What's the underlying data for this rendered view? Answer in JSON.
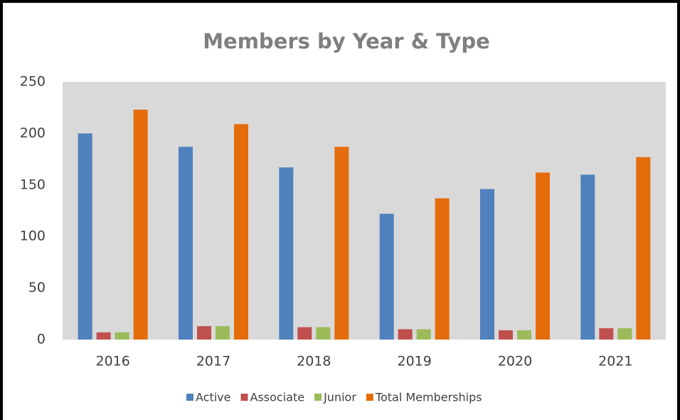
{
  "chart_data": {
    "type": "bar",
    "title": "Members by Year & Type",
    "categories": [
      "2016",
      "2017",
      "2018",
      "2019",
      "2020",
      "2021"
    ],
    "series": [
      {
        "name": "Active",
        "color": "#4f81bd",
        "values": [
          200,
          187,
          167,
          122,
          146,
          160
        ]
      },
      {
        "name": "Associate",
        "color": "#c0504d",
        "values": [
          7,
          13,
          12,
          10,
          9,
          11
        ]
      },
      {
        "name": "Junior",
        "color": "#9bbb59",
        "values": [
          7,
          13,
          12,
          10,
          9,
          11
        ]
      },
      {
        "name": "Total Memberships",
        "color": "#e46c0a",
        "values": [
          223,
          209,
          187,
          137,
          162,
          177
        ]
      }
    ],
    "ylim": [
      0,
      250
    ],
    "yticks": [
      0,
      50,
      100,
      150,
      200,
      250
    ],
    "grid": false,
    "legend": "bottom"
  }
}
